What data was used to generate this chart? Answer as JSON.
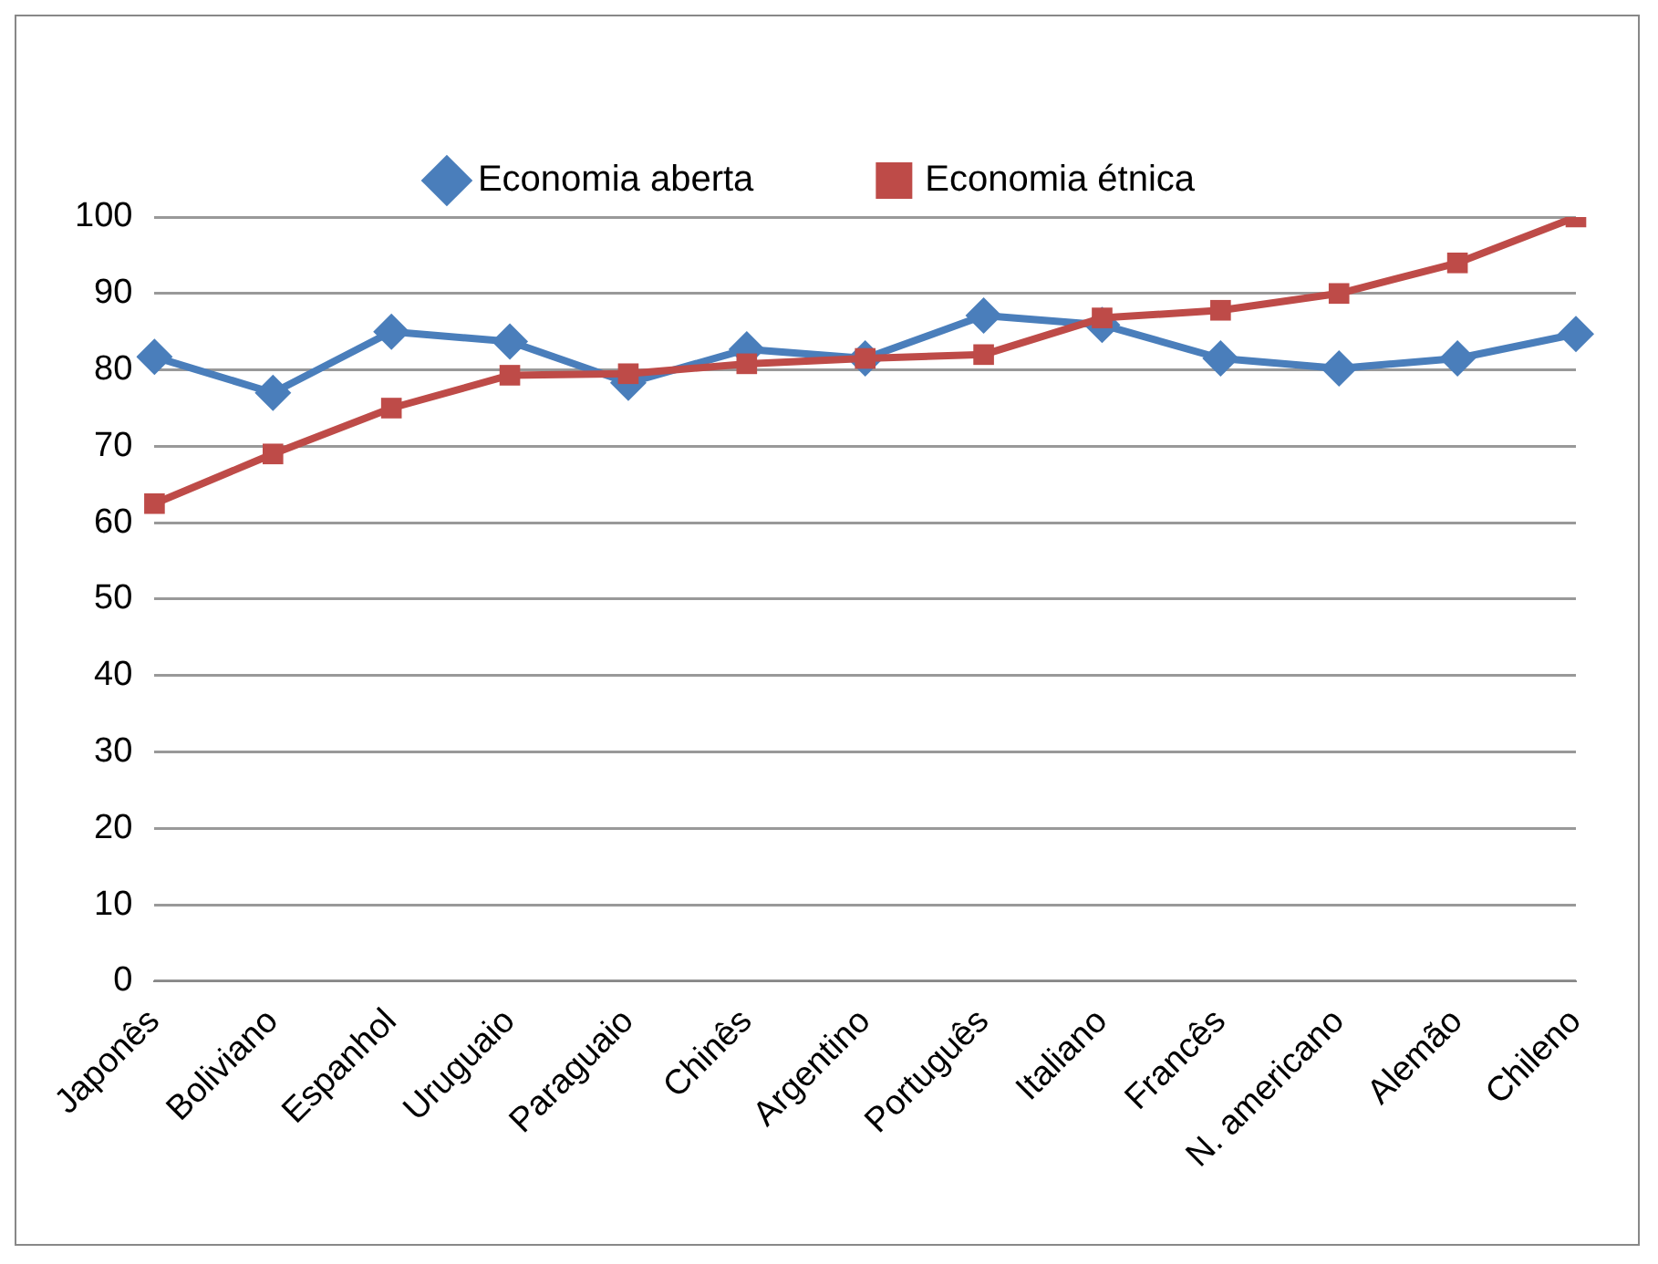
{
  "chart_data": {
    "type": "line",
    "categories": [
      "Japonês",
      "Boliviano",
      "Espanhol",
      "Uruguaio",
      "Paraguaio",
      "Chinês",
      "Argentino",
      "Português",
      "Italiano",
      "Francês",
      "N. americano",
      "Alemão",
      "Chileno"
    ],
    "series": [
      {
        "name": "Economia aberta",
        "color": "#4a7ebb",
        "marker": "diamond",
        "values": [
          81.7,
          77,
          85,
          83.7,
          78.3,
          82.7,
          81.5,
          87.1,
          85.9,
          81.5,
          80.2,
          81.5,
          84.7
        ]
      },
      {
        "name": "Economia étnica",
        "color": "#be4b48",
        "marker": "square",
        "values": [
          62.5,
          69,
          75,
          79.3,
          79.5,
          80.8,
          81.5,
          82,
          86.8,
          87.8,
          90,
          94,
          100
        ]
      }
    ],
    "ylim": [
      0,
      100
    ],
    "yticks": [
      0,
      10,
      20,
      30,
      40,
      50,
      60,
      70,
      80,
      90,
      100
    ],
    "grid": "y",
    "legend": "top",
    "line_style": "solid"
  }
}
